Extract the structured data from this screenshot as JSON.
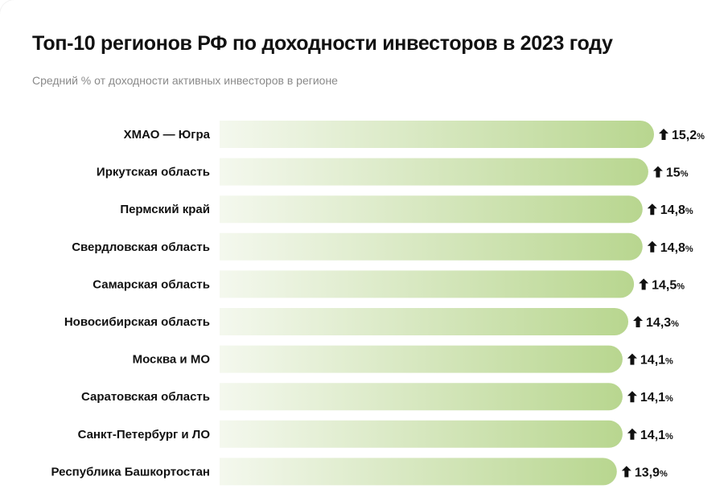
{
  "chart_data": {
    "type": "bar",
    "orientation": "horizontal",
    "title": "Топ-10 регионов РФ по доходности инвесторов в 2023 году",
    "subtitle": "Средний % от доходности активных инвесторов в регионе",
    "categories": [
      "ХМАО — Югра",
      "Иркутская область",
      "Пермский край",
      "Свердловская область",
      "Самарская область",
      "Новосибирская область",
      "Москва и МО",
      "Саратовская область",
      "Санкт-Петербург и ЛО",
      "Республика Башкортостан"
    ],
    "values": [
      15.2,
      15,
      14.8,
      14.8,
      14.5,
      14.3,
      14.1,
      14.1,
      14.1,
      13.9
    ],
    "value_labels": [
      "15,2",
      "15",
      "14,8",
      "14,8",
      "14,5",
      "14,3",
      "14,1",
      "14,1",
      "14,1",
      "13,9"
    ],
    "unit": "%",
    "xlim": [
      0,
      15.2
    ],
    "grid": false,
    "marker_icon": "arrow-up-icon",
    "colors": {
      "bar_start": "#f4f8ee",
      "bar_end": "#b8d68f",
      "text": "#111111",
      "subtitle": "#8a8a8a"
    }
  }
}
